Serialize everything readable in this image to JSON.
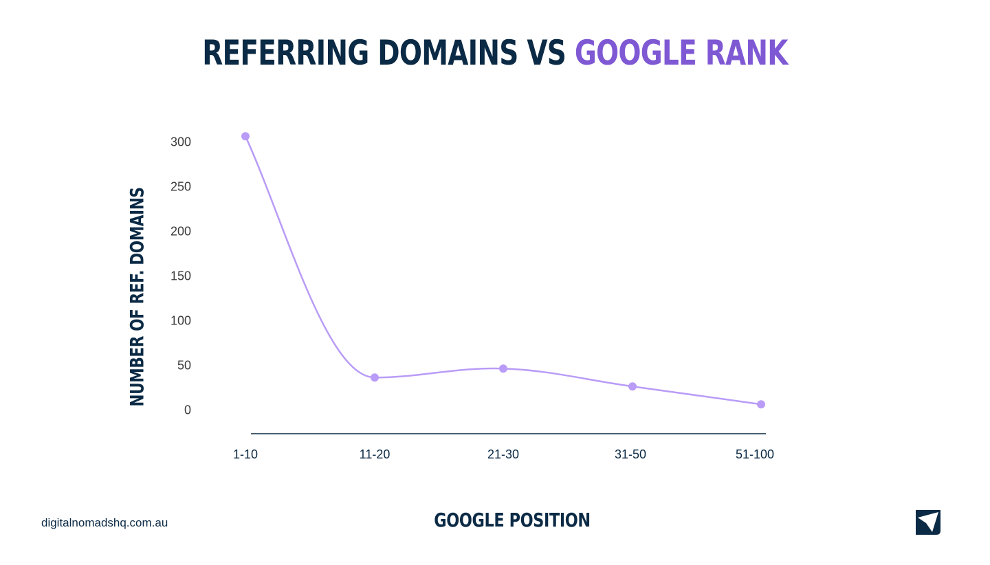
{
  "header": {
    "title_main": "REFERRING DOMAINS VS ",
    "title_accent": "GOOGLE RANK"
  },
  "colors": {
    "navy": "#0b2a45",
    "accent_purple": "#7f59d4",
    "line_purple": "#b99cf7"
  },
  "axes": {
    "ylabel": "NUMBER OF REF. DOMAINS",
    "xlabel": "GOOGLE POSITION",
    "yticks": [
      "300",
      "250",
      "200",
      "150",
      "100",
      "50",
      "0"
    ],
    "xticks": [
      "1-10",
      "11-20",
      "21-30",
      "31-50",
      "51-100"
    ]
  },
  "footer": {
    "url": "digitalnomadshq.com.au",
    "logo_icon": "paper-plane-logo-icon"
  },
  "chart_data": {
    "type": "line",
    "title": "REFERRING DOMAINS VS GOOGLE RANK",
    "xlabel": "GOOGLE POSITION",
    "ylabel": "NUMBER OF REF. DOMAINS",
    "categories": [
      "1-10",
      "11-20",
      "21-30",
      "31-50",
      "51-100"
    ],
    "series": [
      {
        "name": "Referring Domains",
        "values": [
          306,
          36,
          46,
          26,
          6
        ]
      }
    ],
    "ylim": [
      0,
      300
    ],
    "yticks": [
      0,
      50,
      100,
      150,
      200,
      250,
      300
    ],
    "grid": false,
    "legend": "none",
    "smooth": true
  }
}
